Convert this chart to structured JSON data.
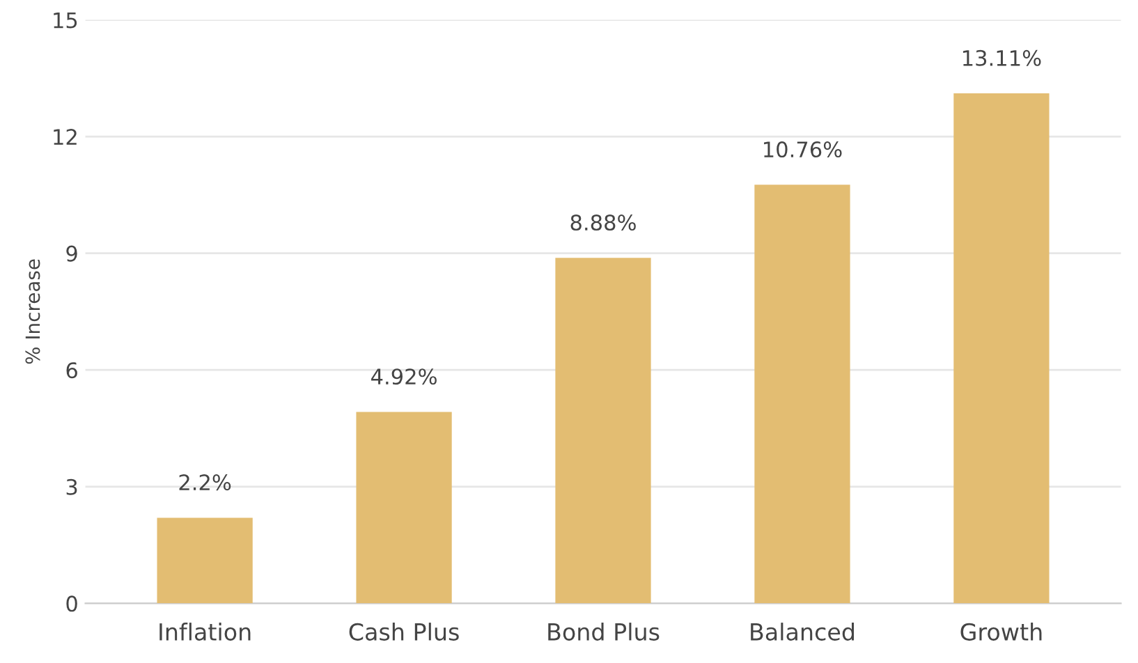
{
  "chart_data": {
    "type": "bar",
    "ylabel": "% Increase",
    "categories": [
      "Inflation",
      "Cash Plus",
      "Bond Plus",
      "Balanced",
      "Growth"
    ],
    "values": [
      2.2,
      4.92,
      8.88,
      10.76,
      13.11
    ],
    "value_labels": [
      "2.2%",
      "4.92%",
      "8.88%",
      "10.76%",
      "13.11%"
    ],
    "color": "#e3bd72",
    "ylim": [
      0,
      15
    ],
    "yticks": [
      0,
      3,
      6,
      9,
      12,
      15
    ],
    "grid": "y"
  }
}
